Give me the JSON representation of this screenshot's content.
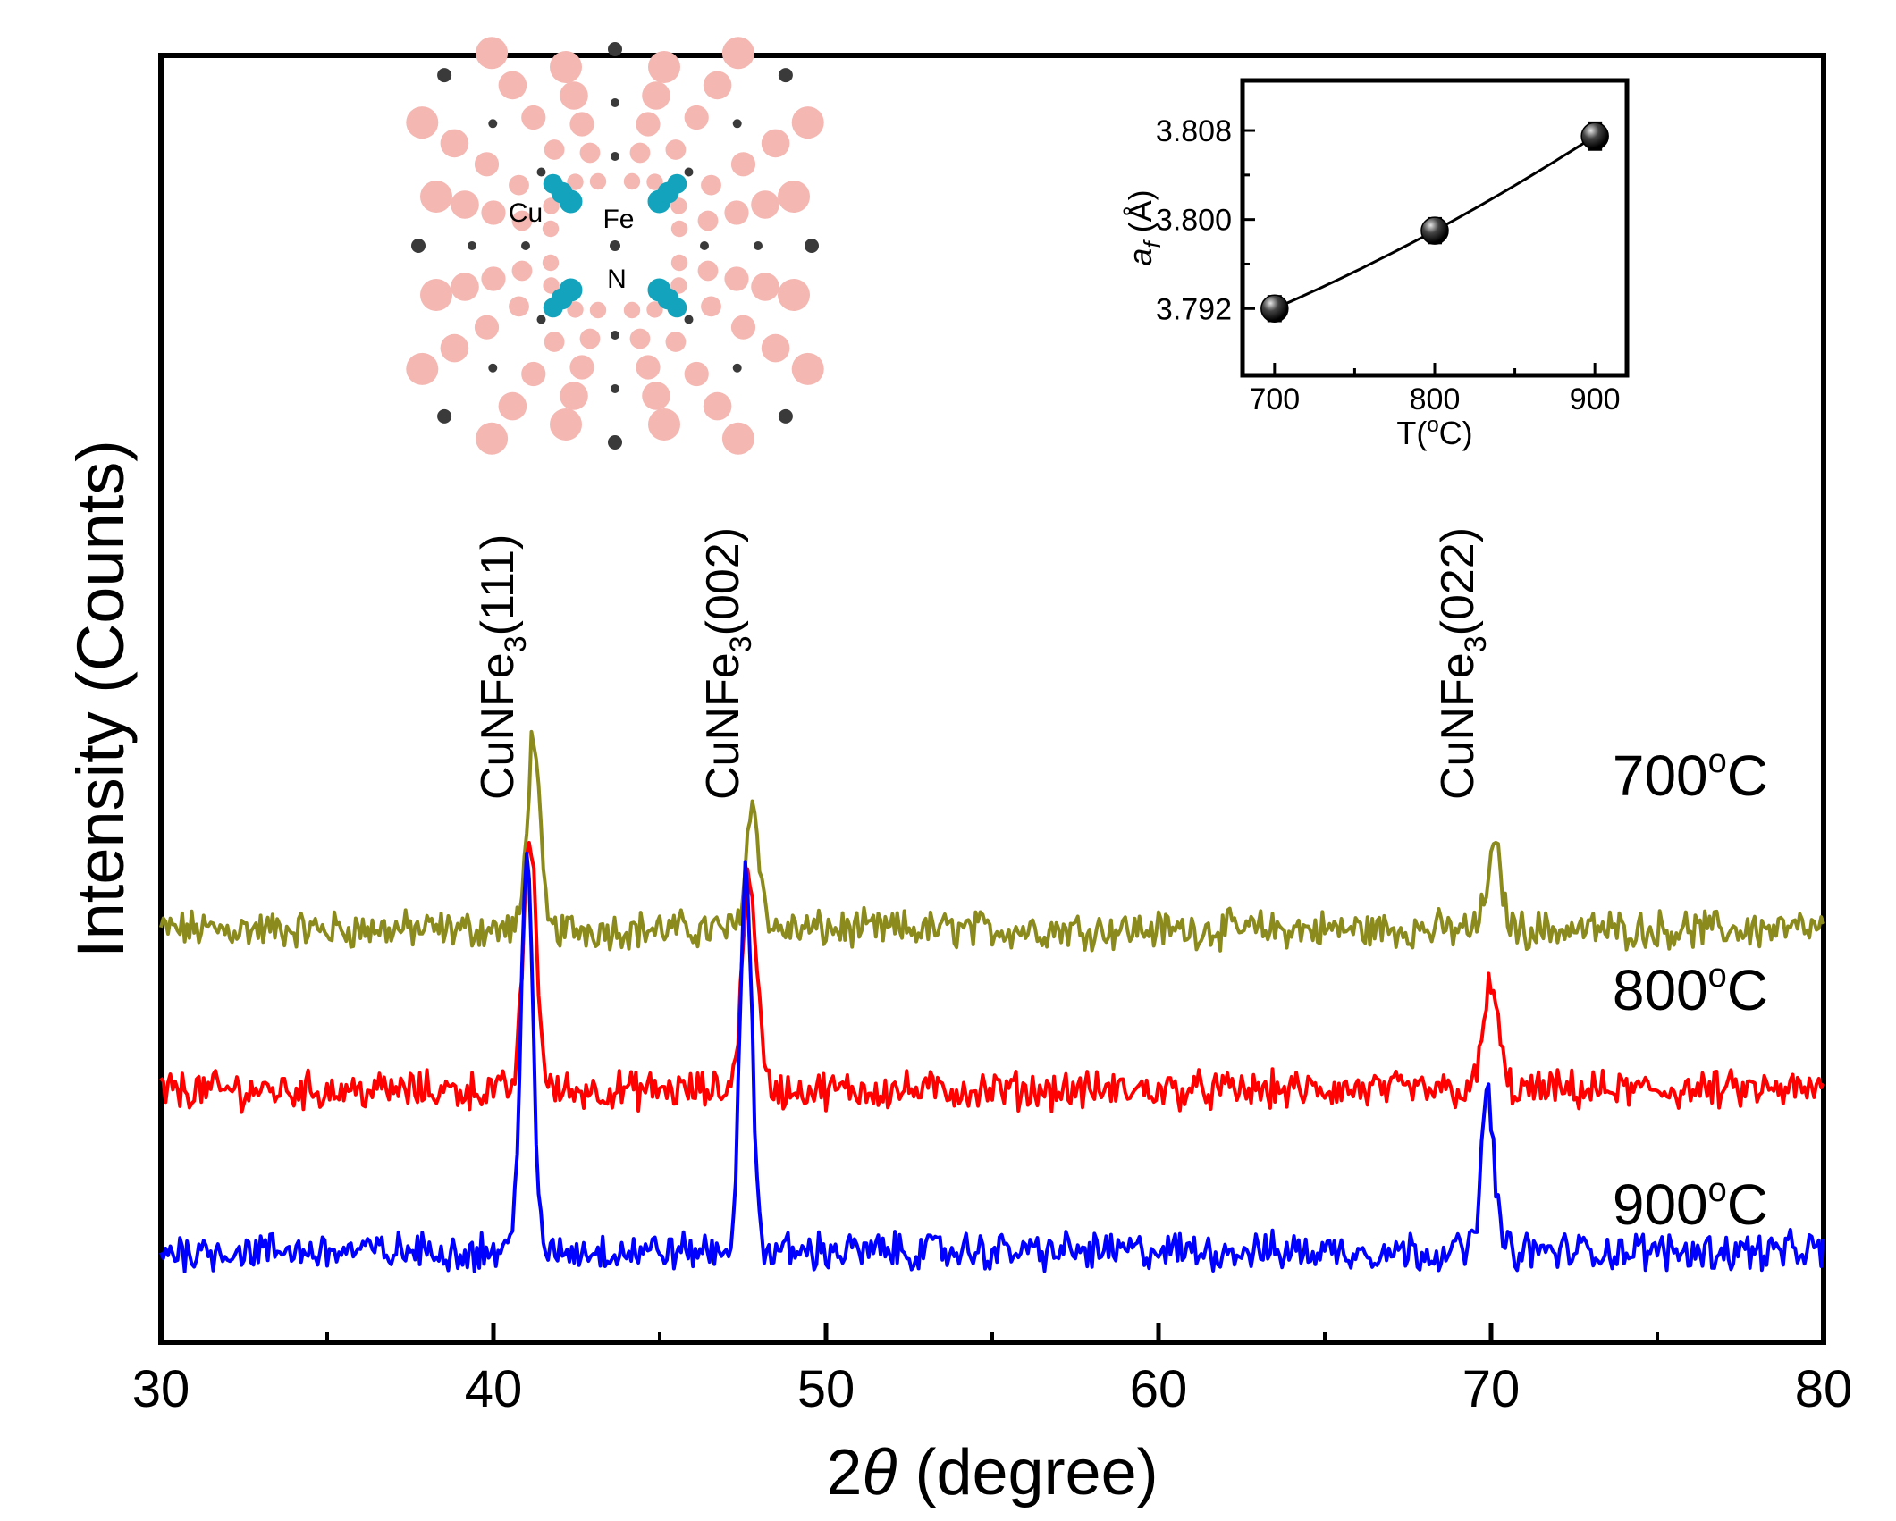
{
  "chart_data": [
    {
      "type": "line",
      "xlabel_prefix": "2",
      "xlabel_symbol": "θ",
      "xlabel_suffix": " (degree)",
      "ylabel": "Intensity (Counts)",
      "xlim": [
        30,
        80
      ],
      "xticks": [
        30,
        40,
        50,
        60,
        70,
        80
      ],
      "yticks_visible": false,
      "grid": false,
      "peak_labels": [
        {
          "base": "CuNFe",
          "sub": "3",
          "hkl": "(111)",
          "x": 41.2
        },
        {
          "base": "CuNFe",
          "sub": "3",
          "hkl": "(002)",
          "x": 47.8
        },
        {
          "base": "CuNFe",
          "sub": "3",
          "hkl": "(022)",
          "x": 70.0
        }
      ],
      "series": [
        {
          "name": "700",
          "unit_sup": "o",
          "unit": "C",
          "color": "#8b8a1c",
          "baseline": 1.0,
          "peaks": [
            {
              "x": 41.2,
              "h": 0.55,
              "w": 0.18
            },
            {
              "x": 47.8,
              "h": 0.35,
              "w": 0.2
            },
            {
              "x": 70.1,
              "h": 0.22,
              "w": 0.22
            }
          ]
        },
        {
          "name": "800",
          "unit_sup": "o",
          "unit": "C",
          "color": "#ff0000",
          "baseline": 0.55,
          "peaks": [
            {
              "x": 41.1,
              "h": 0.7,
              "w": 0.2
            },
            {
              "x": 47.7,
              "h": 0.6,
              "w": 0.22
            },
            {
              "x": 70.0,
              "h": 0.3,
              "w": 0.22
            }
          ]
        },
        {
          "name": "900",
          "unit_sup": "o",
          "unit": "C",
          "color": "#0000ff",
          "baseline": 0.1,
          "peaks": [
            {
              "x": 41.0,
              "h": 1.1,
              "w": 0.18
            },
            {
              "x": 47.6,
              "h": 1.05,
              "w": 0.18
            },
            {
              "x": 69.9,
              "h": 0.43,
              "w": 0.2
            }
          ]
        }
      ]
    },
    {
      "type": "scatter",
      "inset": true,
      "xlabel": "T(",
      "xlabel_sup": "o",
      "xlabel_suffix": "C)",
      "ylabel_symbol": "a",
      "ylabel_sub": "f",
      "ylabel_suffix": " (Å)",
      "xlim": [
        680,
        920
      ],
      "ylim": [
        3.786,
        3.8125
      ],
      "xticks": [
        700,
        800,
        900
      ],
      "yticks": [
        "3.792",
        "3.800",
        "3.808"
      ],
      "x": [
        700,
        800,
        900
      ],
      "y": [
        3.792,
        3.799,
        3.8075
      ],
      "yerr": [
        0.0011,
        0.0011,
        0.0012
      ]
    }
  ],
  "structure_labels": {
    "cu": "Cu",
    "fe": "Fe",
    "n": "N"
  }
}
